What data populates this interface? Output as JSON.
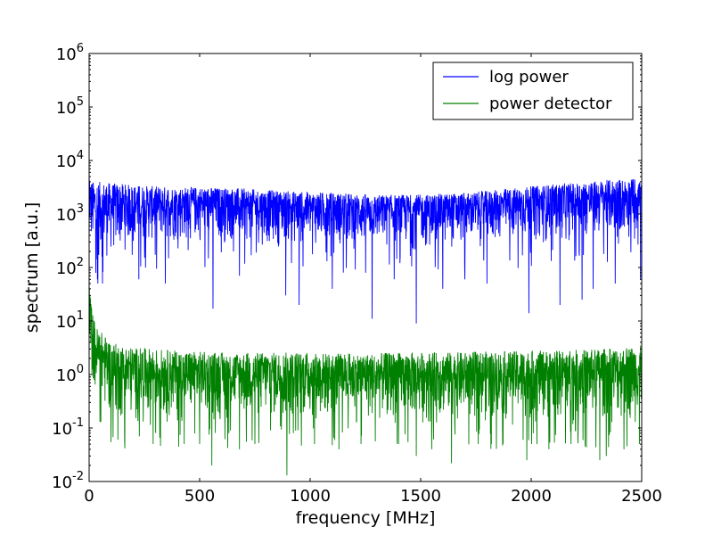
{
  "chart_data": {
    "type": "line",
    "title": "",
    "xlabel": "frequency [MHz]",
    "ylabel": "spectrum [a.u.]",
    "xlim": [
      0,
      2500
    ],
    "ylim": [
      0.01,
      1000000
    ],
    "y_scale": "log",
    "grid": false,
    "legend_position": "top-right",
    "x_ticks": [
      0,
      500,
      1000,
      1500,
      2000,
      2500
    ],
    "x_tick_labels": [
      "0",
      "500",
      "1000",
      "1500",
      "2000",
      "2500"
    ],
    "y_ticks": [
      0.01,
      0.1,
      1,
      10,
      100,
      1000,
      10000,
      100000,
      1000000
    ],
    "y_tick_labels": [
      {
        "base": "10",
        "exp": "-2"
      },
      {
        "base": "10",
        "exp": "-1"
      },
      {
        "base": "10",
        "exp": "0"
      },
      {
        "base": "10",
        "exp": "1"
      },
      {
        "base": "10",
        "exp": "2"
      },
      {
        "base": "10",
        "exp": "3"
      },
      {
        "base": "10",
        "exp": "4"
      },
      {
        "base": "10",
        "exp": "5"
      },
      {
        "base": "10",
        "exp": "6"
      }
    ],
    "series": [
      {
        "name": "log power",
        "color": "#0000ff",
        "x": [
          0,
          5,
          20,
          50,
          100,
          200,
          300,
          400,
          500,
          600,
          700,
          800,
          900,
          1000,
          1100,
          1200,
          1300,
          1400,
          1500,
          1600,
          1700,
          1800,
          1900,
          2000,
          2100,
          2200,
          2300,
          2400,
          2500
        ],
        "band_low": [
          200,
          150,
          100,
          100,
          120,
          200,
          230,
          230,
          240,
          240,
          230,
          220,
          210,
          200,
          200,
          180,
          180,
          180,
          180,
          190,
          200,
          220,
          230,
          240,
          250,
          260,
          270,
          280,
          280
        ],
        "band_high": [
          10000,
          4500,
          4000,
          4000,
          3800,
          3500,
          3300,
          3200,
          3200,
          3100,
          3000,
          2800,
          2700,
          2600,
          2500,
          2400,
          2300,
          2300,
          2300,
          2400,
          2500,
          2700,
          3000,
          3300,
          3600,
          3900,
          4200,
          4500,
          4700
        ],
        "dips": [
          [
            40,
            50
          ],
          [
            60,
            50
          ],
          [
            225,
            60
          ],
          [
            345,
            70
          ],
          [
            345,
            50
          ],
          [
            560,
            17
          ],
          [
            680,
            70
          ],
          [
            890,
            30
          ],
          [
            950,
            20
          ],
          [
            1100,
            40
          ],
          [
            1150,
            80
          ],
          [
            1280,
            11
          ],
          [
            1380,
            60
          ],
          [
            1480,
            9
          ],
          [
            1600,
            40
          ],
          [
            1700,
            60
          ],
          [
            1800,
            50
          ],
          [
            1990,
            14
          ],
          [
            2130,
            20
          ],
          [
            2230,
            25
          ],
          [
            2280,
            40
          ],
          [
            2380,
            50
          ],
          [
            2495,
            60
          ]
        ]
      },
      {
        "name": "power detector",
        "color": "#008000",
        "x": [
          0,
          5,
          15,
          30,
          60,
          100,
          150,
          200,
          300,
          400,
          500,
          600,
          700,
          800,
          900,
          1000,
          1100,
          1200,
          1300,
          1400,
          1500,
          1600,
          1700,
          1800,
          1900,
          2000,
          2100,
          2200,
          2300,
          2400,
          2500
        ],
        "band_low": [
          3,
          2,
          0.5,
          0.2,
          0.15,
          0.12,
          0.1,
          0.1,
          0.1,
          0.1,
          0.1,
          0.1,
          0.1,
          0.1,
          0.1,
          0.1,
          0.1,
          0.1,
          0.1,
          0.1,
          0.1,
          0.1,
          0.1,
          0.1,
          0.1,
          0.1,
          0.1,
          0.1,
          0.1,
          0.1,
          0.1
        ],
        "band_high": [
          100,
          30,
          15,
          8,
          6,
          4,
          3.5,
          3.2,
          3,
          2.8,
          2.7,
          2.6,
          2.6,
          2.6,
          2.6,
          2.6,
          2.5,
          2.5,
          2.5,
          2.6,
          2.6,
          2.6,
          2.6,
          2.7,
          2.7,
          2.8,
          2.8,
          2.9,
          3.0,
          3.2,
          3.5
        ],
        "dips": [
          [
            130,
            0.06
          ],
          [
            290,
            0.05
          ],
          [
            430,
            0.05
          ],
          [
            500,
            0.05
          ],
          [
            555,
            0.02
          ],
          [
            680,
            0.04
          ],
          [
            750,
            0.05
          ],
          [
            895,
            0.013
          ],
          [
            1020,
            0.05
          ],
          [
            1130,
            0.04
          ],
          [
            1230,
            0.05
          ],
          [
            1400,
            0.05
          ],
          [
            1480,
            0.03
          ],
          [
            1550,
            0.04
          ],
          [
            1640,
            0.022
          ],
          [
            1760,
            0.05
          ],
          [
            1820,
            0.05
          ],
          [
            1980,
            0.025
          ],
          [
            2080,
            0.04
          ],
          [
            2180,
            0.05
          ],
          [
            2310,
            0.025
          ],
          [
            2340,
            0.03
          ],
          [
            2420,
            0.04
          ],
          [
            2490,
            0.05
          ]
        ]
      }
    ]
  }
}
